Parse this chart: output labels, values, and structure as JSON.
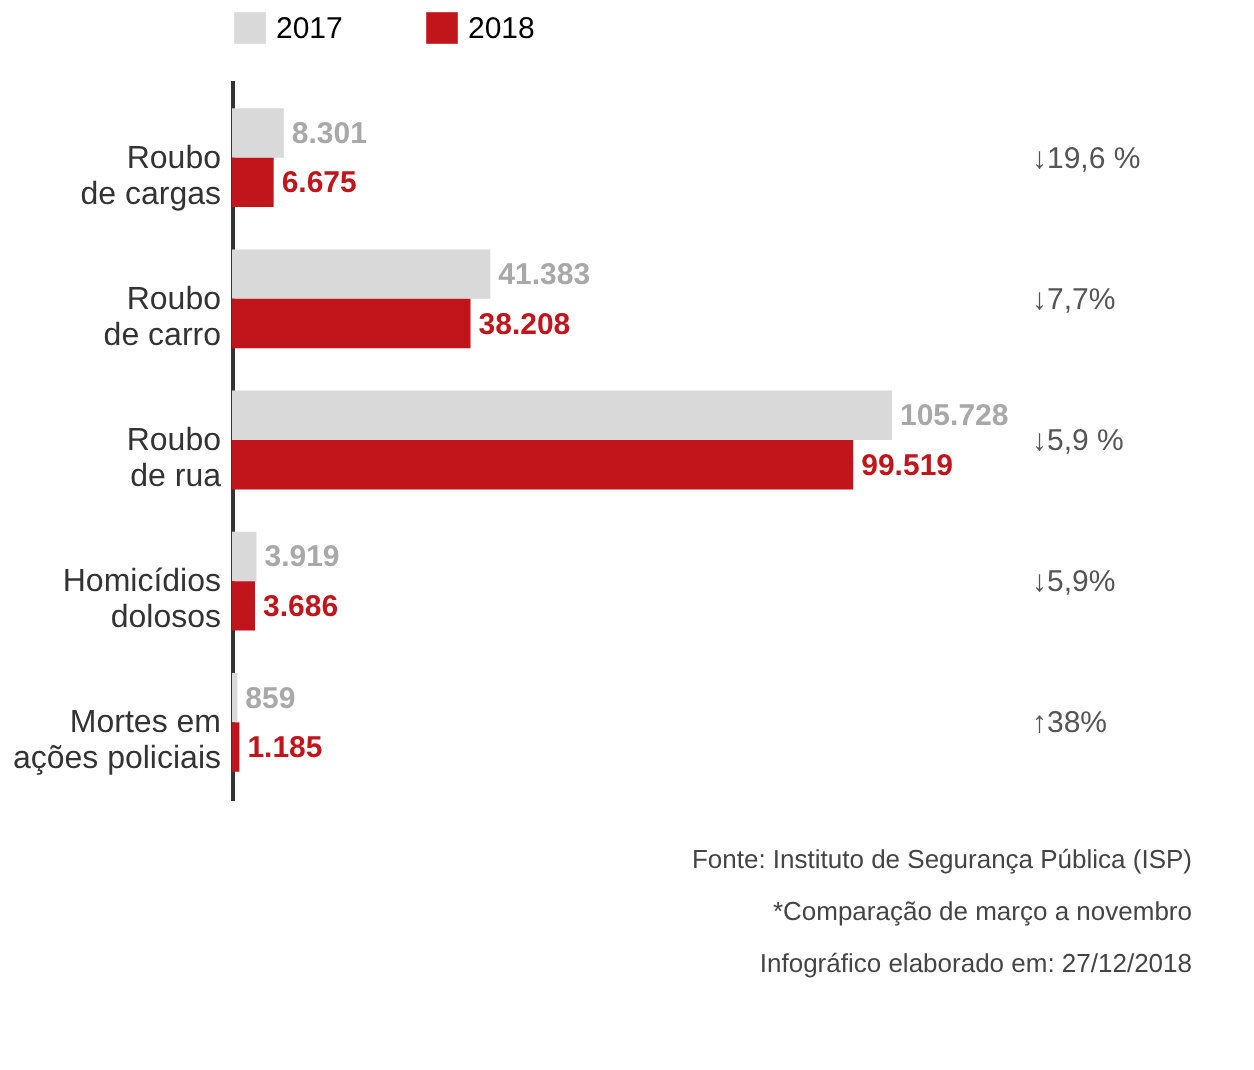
{
  "chart_data": {
    "type": "bar",
    "orientation": "horizontal",
    "legend": "top left",
    "grid": false,
    "categories": [
      "Roubo de cargas",
      "Roubo de carro",
      "Roubo de rua",
      "Homicídios dolosos",
      "Mortes em ações policiais"
    ],
    "series": [
      {
        "name": "2017",
        "color": "#d9d9d9",
        "values": [
          8301,
          41383,
          105728,
          3919,
          859
        ],
        "value_labels": [
          "8.301",
          "41.383",
          "105.728",
          "3.919",
          "859"
        ]
      },
      {
        "name": "2018",
        "color": "#c0151b",
        "values": [
          6675,
          38208,
          99519,
          3686,
          1185
        ],
        "value_labels": [
          "6.675",
          "38.208",
          "99.519",
          "3.686",
          "1.185"
        ]
      }
    ],
    "annotations": [
      "↓19,6 %",
      "↓7,7%",
      "↓5,9 %",
      "↓5,9%",
      "↑38%",
      "Fonte: Instituto de Segurança Pública (ISP)",
      "*Comparação de março a novembro",
      "Infográfico elaborado em: 27/12/2018"
    ]
  }
}
